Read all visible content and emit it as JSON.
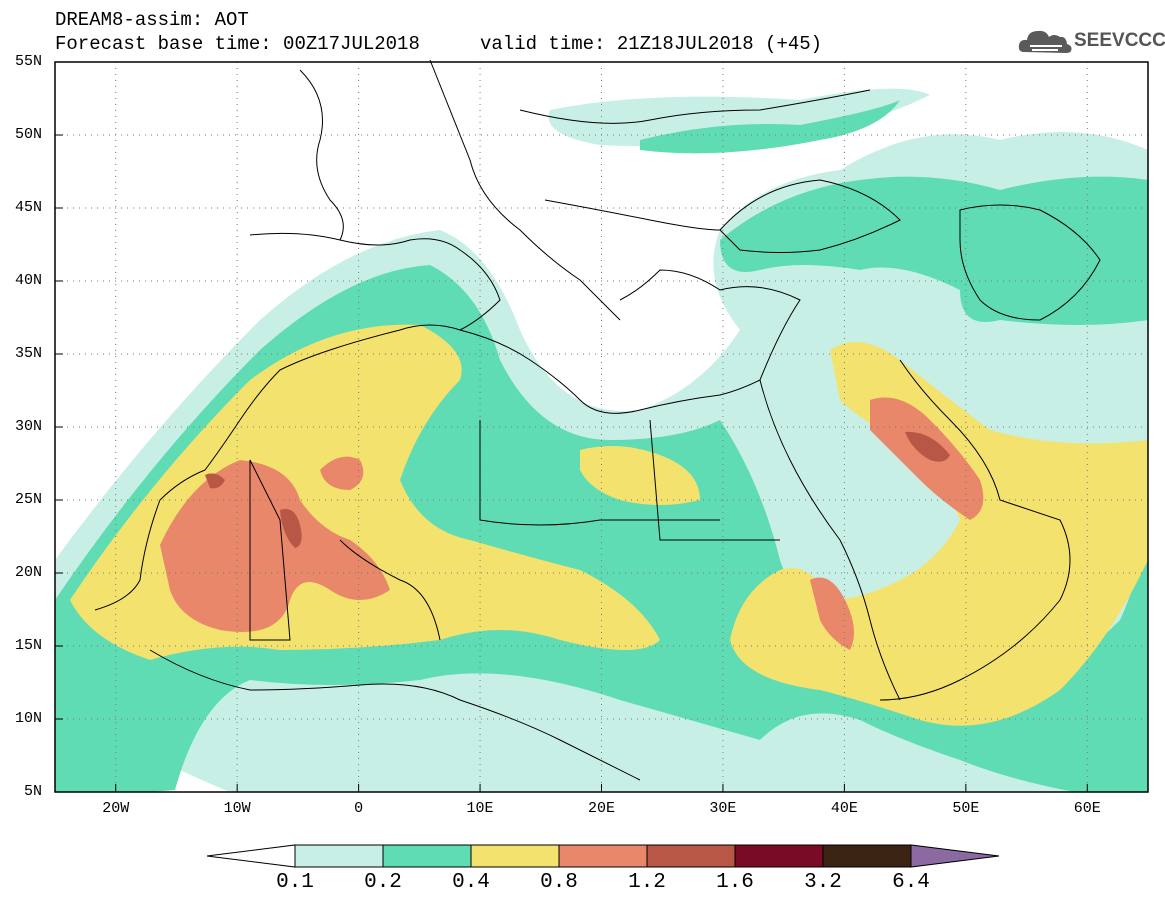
{
  "header": {
    "title_line1": "DREAM8-assim: AOT",
    "title_line2": "Forecast base time: 00Z17JUL2018",
    "valid_time": "valid time: 21Z18JUL2018 (+45)",
    "logo_text": "SEEVCCC",
    "logo_icon": "cloud-icon"
  },
  "map": {
    "variable": "AOT",
    "region": "North Africa, Europe, Middle East",
    "lat_labels": [
      "55N",
      "50N",
      "45N",
      "40N",
      "35N",
      "30N",
      "25N",
      "20N",
      "15N",
      "10N",
      "5N"
    ],
    "lon_labels": [
      "20W",
      "10W",
      "0",
      "10E",
      "20E",
      "30E",
      "40E",
      "50E",
      "60E"
    ],
    "lat_range": [
      5,
      55
    ],
    "lon_range": [
      -25,
      65
    ],
    "grid": "dotted"
  },
  "colorbar": {
    "levels": [
      "0.1",
      "0.2",
      "0.4",
      "0.8",
      "1.2",
      "1.6",
      "3.2",
      "6.4"
    ],
    "colors": [
      "#ffffff",
      "#c8efe6",
      "#5fdcb4",
      "#f4e26e",
      "#e8876a",
      "#b85746",
      "#7a0b26",
      "#3b2414",
      "#8a6aa0"
    ]
  },
  "colors": {
    "c1": "#c8efe6",
    "c2": "#5fdcb4",
    "c3": "#f4e26e",
    "c4": "#e8876a",
    "c5": "#b85746"
  }
}
